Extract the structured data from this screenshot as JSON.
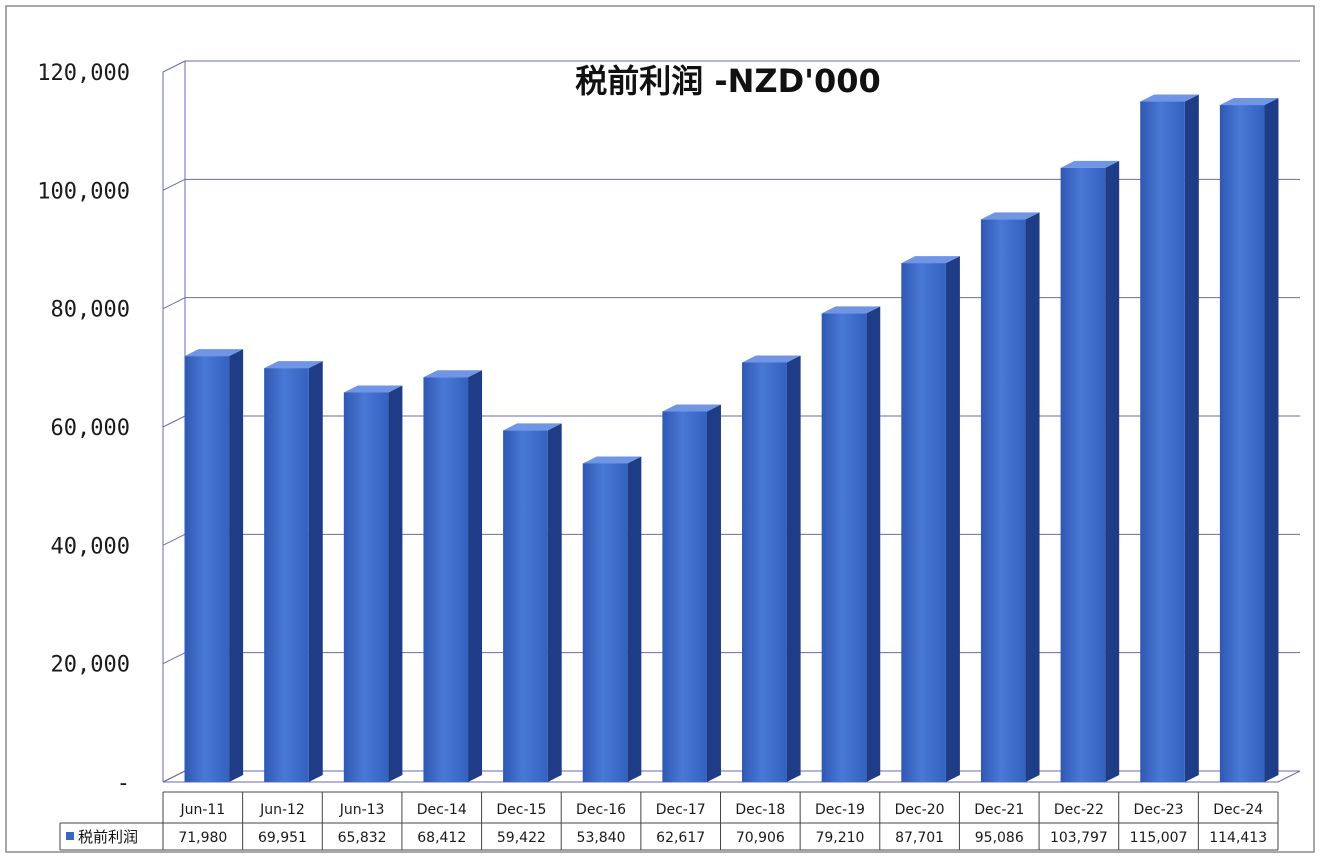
{
  "chart_data": {
    "type": "bar",
    "title": "税前利润 -NZD'000",
    "categories": [
      "Jun-11",
      "Jun-12",
      "Jun-13",
      "Dec-14",
      "Dec-15",
      "Dec-16",
      "Dec-17",
      "Dec-18",
      "Dec-19",
      "Dec-20",
      "Dec-21",
      "Dec-22",
      "Dec-23",
      "Dec-24"
    ],
    "series": [
      {
        "name": "税前利润",
        "values": [
          71980,
          69951,
          65832,
          68412,
          59422,
          53840,
          62617,
          70906,
          79210,
          87701,
          95086,
          103797,
          115007,
          114413
        ],
        "value_labels": [
          "71,980",
          "69,951",
          "65,832",
          "68,412",
          "59,422",
          "53,840",
          "62,617",
          "70,906",
          "79,210",
          "87,701",
          "95,086",
          "103,797",
          "115,007",
          "114,413"
        ]
      }
    ],
    "ylim": [
      0,
      120000
    ],
    "y_ticks": [
      0,
      20000,
      40000,
      60000,
      80000,
      100000,
      120000
    ],
    "y_tick_labels": [
      "-",
      "20,000",
      "40,000",
      "60,000",
      "80,000",
      "100,000",
      "120,000"
    ],
    "xlabel": "",
    "ylabel": "",
    "grid": true,
    "legend": "data-table-left",
    "colors": {
      "bar_front": "#3a66c4",
      "bar_side": "#1f3d86",
      "bar_top": "#6f95e4",
      "grid": "#6a6ab0"
    }
  }
}
